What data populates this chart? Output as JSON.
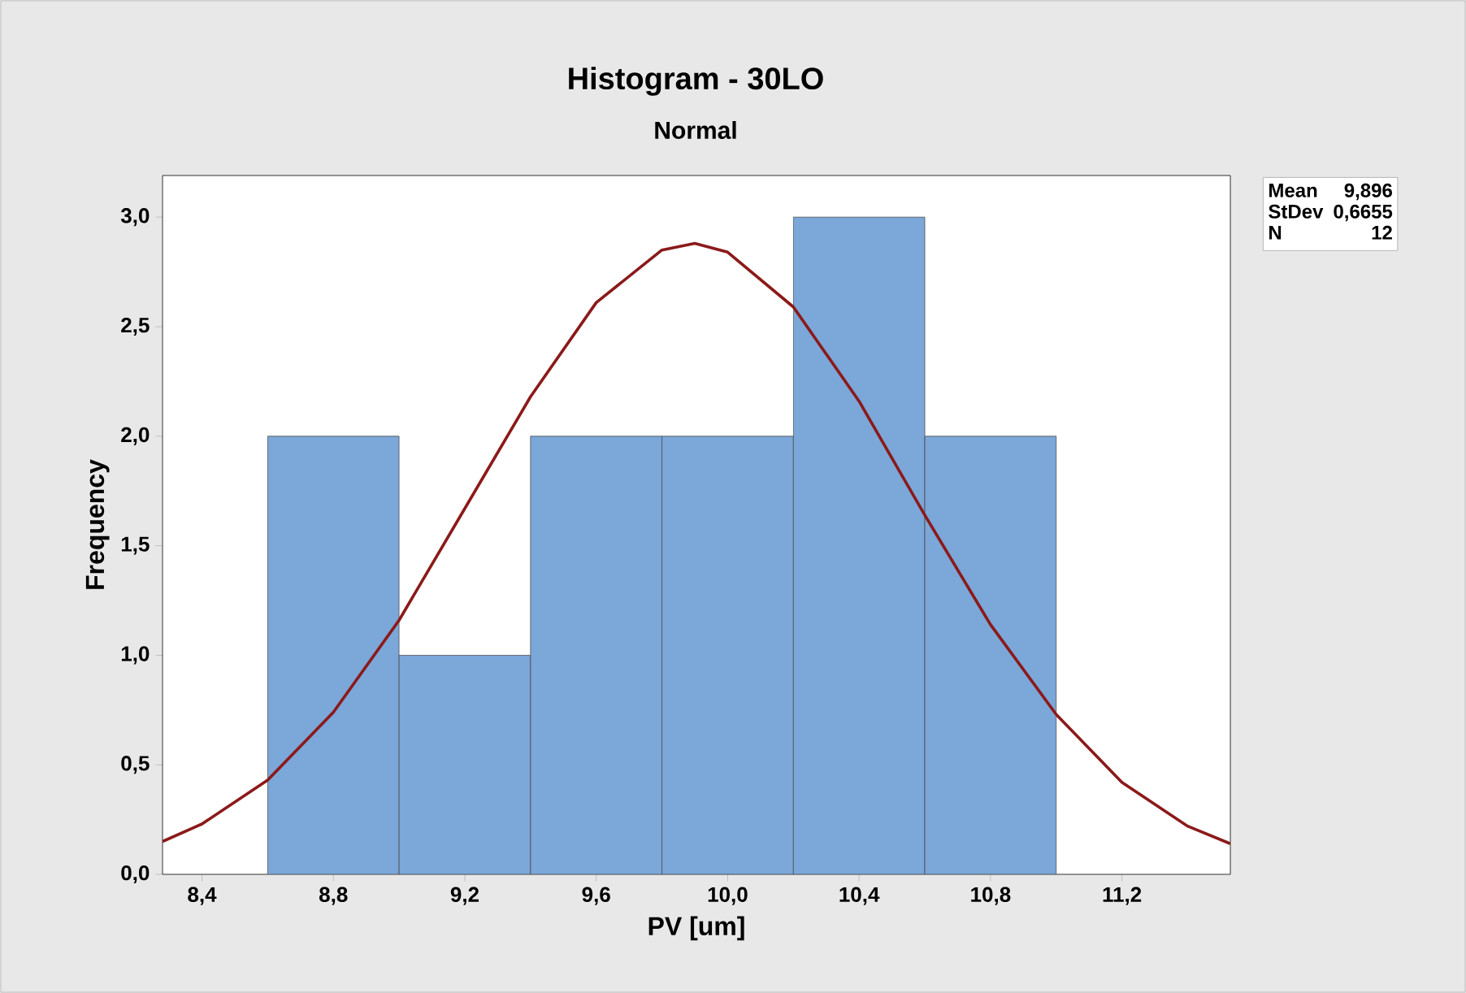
{
  "chart_data": {
    "type": "histogram",
    "title": "Histogram - 30LO",
    "subtitle": "Normal",
    "xlabel": "PV [um]",
    "ylabel": "Frequency",
    "bins": [
      8.6,
      9.0,
      9.4,
      9.8,
      10.2,
      10.6,
      11.0
    ],
    "values": [
      2,
      1,
      2,
      2,
      3,
      2
    ],
    "color": "#7ba7d9",
    "series": [
      {
        "type": "line",
        "color": "#8b1a1a",
        "marker": "none",
        "x": [
          8.28,
          8.4,
          8.6,
          8.8,
          9.0,
          9.2,
          9.4,
          9.6,
          9.8,
          9.9,
          10.0,
          10.2,
          10.4,
          10.6,
          10.8,
          11.0,
          11.2,
          11.4,
          11.53
        ],
        "values": [
          0.15,
          0.23,
          0.43,
          0.74,
          1.16,
          1.67,
          2.18,
          2.61,
          2.85,
          2.88,
          2.84,
          2.59,
          2.16,
          1.64,
          1.14,
          0.73,
          0.42,
          0.22,
          0.14
        ]
      }
    ],
    "xlim": [
      8.28,
      11.53
    ],
    "ylim": [
      0,
      3.19
    ],
    "xticks": [
      {
        "value": 8.4,
        "label": "8,4"
      },
      {
        "value": 8.8,
        "label": "8,8"
      },
      {
        "value": 9.2,
        "label": "9,2"
      },
      {
        "value": 9.6,
        "label": "9,6"
      },
      {
        "value": 10.0,
        "label": "10,0"
      },
      {
        "value": 10.4,
        "label": "10,4"
      },
      {
        "value": 10.8,
        "label": "10,8"
      },
      {
        "value": 11.2,
        "label": "11,2"
      }
    ],
    "yticks": [
      {
        "value": 0,
        "label": "0,0"
      },
      {
        "value": 0.5,
        "label": "0,5"
      },
      {
        "value": 1.0,
        "label": "1,0"
      },
      {
        "value": 1.5,
        "label": "1,5"
      },
      {
        "value": 2.0,
        "label": "2,0"
      },
      {
        "value": 2.5,
        "label": "2,5"
      },
      {
        "value": 3.0,
        "label": "3,0"
      }
    ],
    "annotations": [
      "Mean",
      "9,896",
      "StDev",
      "0,6655",
      "N",
      "12"
    ]
  }
}
